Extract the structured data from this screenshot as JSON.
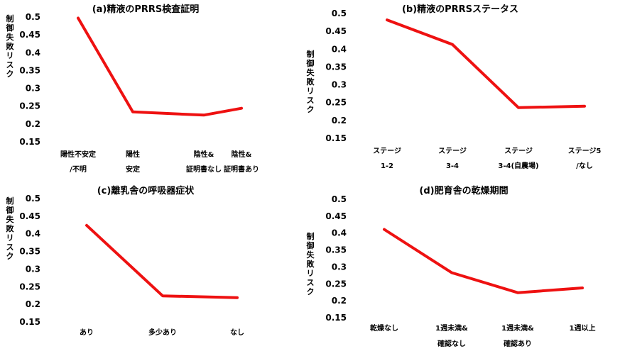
{
  "chart_data": [
    {
      "type": "line",
      "title": "(a)精液のPRRS検査証明",
      "ylabel": "制御失敗リスク",
      "categories": [
        [
          "陽性不安定",
          "/不明"
        ],
        [
          "陽性",
          "安定"
        ],
        [
          "陰性&",
          "証明書なし"
        ],
        [
          "陰性&",
          "証明書あり"
        ]
      ],
      "values": [
        0.497,
        0.234,
        0.225,
        0.244
      ],
      "yticks": [
        "0.15",
        "0.2",
        "0.25",
        "0.3",
        "0.35",
        "0.4",
        "0.45",
        "0.5"
      ],
      "ylim": [
        0.15,
        0.5
      ],
      "grid": false,
      "color": "#ee1111"
    },
    {
      "type": "line",
      "title": "(b)精液のPRRSステータス",
      "ylabel": "制御失敗リスク",
      "categories": [
        [
          "ステージ",
          "1-2"
        ],
        [
          "ステージ",
          "3-4"
        ],
        [
          "ステージ",
          "3-4(自農場)"
        ],
        [
          "ステージ5",
          "/なし"
        ]
      ],
      "values": [
        0.482,
        0.413,
        0.236,
        0.24
      ],
      "yticks": [
        "0.15",
        "0.2",
        "0.25",
        "0.3",
        "0.35",
        "0.4",
        "0.45",
        "0.5"
      ],
      "ylim": [
        0.15,
        0.5
      ],
      "grid": false,
      "color": "#ee1111"
    },
    {
      "type": "line",
      "title": "(c)離乳舎の呼吸器症状",
      "ylabel": "制御失敗リスク",
      "categories": [
        [
          "あり"
        ],
        [
          "多少あり"
        ],
        [
          "なし"
        ]
      ],
      "values": [
        0.424,
        0.224,
        0.219
      ],
      "yticks": [
        "0.15",
        "0.2",
        "0.25",
        "0.3",
        "0.35",
        "0.4",
        "0.45",
        "0.5"
      ],
      "ylim": [
        0.15,
        0.5
      ],
      "grid": false,
      "color": "#ee1111"
    },
    {
      "type": "line",
      "title": "(d)肥育舎の乾燥期間",
      "ylabel": "制御失敗リスク",
      "categories": [
        [
          "乾燥なし"
        ],
        [
          "1週未満&",
          "確認なし"
        ],
        [
          "1週未満&",
          "確認あり"
        ],
        [
          "1週以上"
        ]
      ],
      "values": [
        0.411,
        0.283,
        0.224,
        0.238
      ],
      "yticks": [
        "0.15",
        "0.2",
        "0.25",
        "0.3",
        "0.35",
        "0.4",
        "0.45",
        "0.5"
      ],
      "ylim": [
        0.15,
        0.5
      ],
      "grid": false,
      "color": "#ee1111"
    }
  ]
}
